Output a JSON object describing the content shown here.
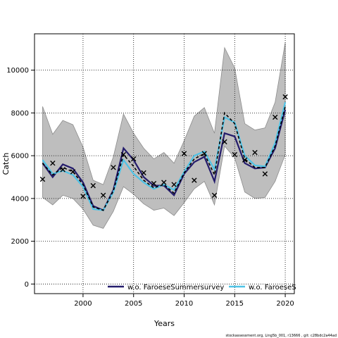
{
  "chart_data": {
    "type": "line",
    "xlabel": "Years",
    "ylabel": "Catch",
    "xlim": [
      1995.2,
      2020.9
    ],
    "ylim": [
      -450,
      11700
    ],
    "x_ticks": [
      2000,
      2005,
      2010,
      2015,
      2020
    ],
    "y_ticks": [
      0,
      2000,
      4000,
      6000,
      8000,
      10000
    ],
    "grid": true,
    "legend_position": "bottom",
    "legend": [
      {
        "label": "w.o. FaroeseSummersurvey",
        "color": "#241c6c"
      },
      {
        "label": "w.o. FaroeseS",
        "color": "#4fc3e6"
      }
    ],
    "x": [
      1996,
      1997,
      1998,
      1999,
      2000,
      2001,
      2002,
      2003,
      2004,
      2005,
      2006,
      2007,
      2008,
      2009,
      2010,
      2011,
      2012,
      2013,
      2014,
      2015,
      2016,
      2017,
      2018,
      2019,
      2020
    ],
    "observed": [
      4900,
      5650,
      5350,
      5250,
      4100,
      4600,
      4150,
      5450,
      6050,
      5850,
      5200,
      4700,
      4750,
      4650,
      6100,
      4850,
      6100,
      4150,
      6650,
      6050,
      5800,
      6150,
      5150,
      7800,
      8750
    ],
    "band_upper": [
      8300,
      7000,
      7650,
      7450,
      6400,
      4850,
      4650,
      5950,
      7950,
      7050,
      6350,
      5850,
      6150,
      5650,
      6700,
      7850,
      8250,
      7050,
      11050,
      10100,
      7500,
      7200,
      7300,
      8500,
      11300
    ],
    "band_lower": [
      4050,
      3700,
      4150,
      4000,
      3500,
      2750,
      2600,
      3400,
      4550,
      4200,
      3750,
      3450,
      3550,
      3200,
      3800,
      4450,
      4800,
      3700,
      6450,
      5900,
      4300,
      4000,
      4050,
      4800,
      6050
    ],
    "series": [
      {
        "name": "w.o. FaroeseSummersurvey",
        "color": "#241c6c",
        "dash": "solid",
        "values": [
          5650,
          5000,
          5600,
          5400,
          4750,
          3650,
          3450,
          4400,
          6350,
          5800,
          5000,
          4600,
          4600,
          4150,
          5150,
          5700,
          5950,
          4800,
          7050,
          6900,
          5650,
          5400,
          5450,
          6350,
          8150
        ]
      },
      {
        "name": "w.o. FaroeseS",
        "color": "#4fc3e6",
        "dash": "solid",
        "values": [
          5800,
          5150,
          5300,
          5100,
          4550,
          3500,
          3450,
          4300,
          5800,
          5150,
          4750,
          4450,
          4650,
          4400,
          5250,
          6000,
          6200,
          5350,
          7800,
          7550,
          6000,
          5550,
          5500,
          6600,
          8500
        ]
      },
      {
        "name": "",
        "color": "#000000",
        "dash": "dashed",
        "values": [
          5650,
          5100,
          5450,
          5250,
          4650,
          3600,
          3450,
          4350,
          6050,
          5500,
          4850,
          4500,
          4650,
          4250,
          5200,
          5850,
          6100,
          5100,
          8000,
          7500,
          5850,
          5450,
          5450,
          6450,
          8300
        ]
      }
    ],
    "footer": "stockassessment.org, Ling5b_001, r13666 , git: c28bdc2a44ad"
  }
}
